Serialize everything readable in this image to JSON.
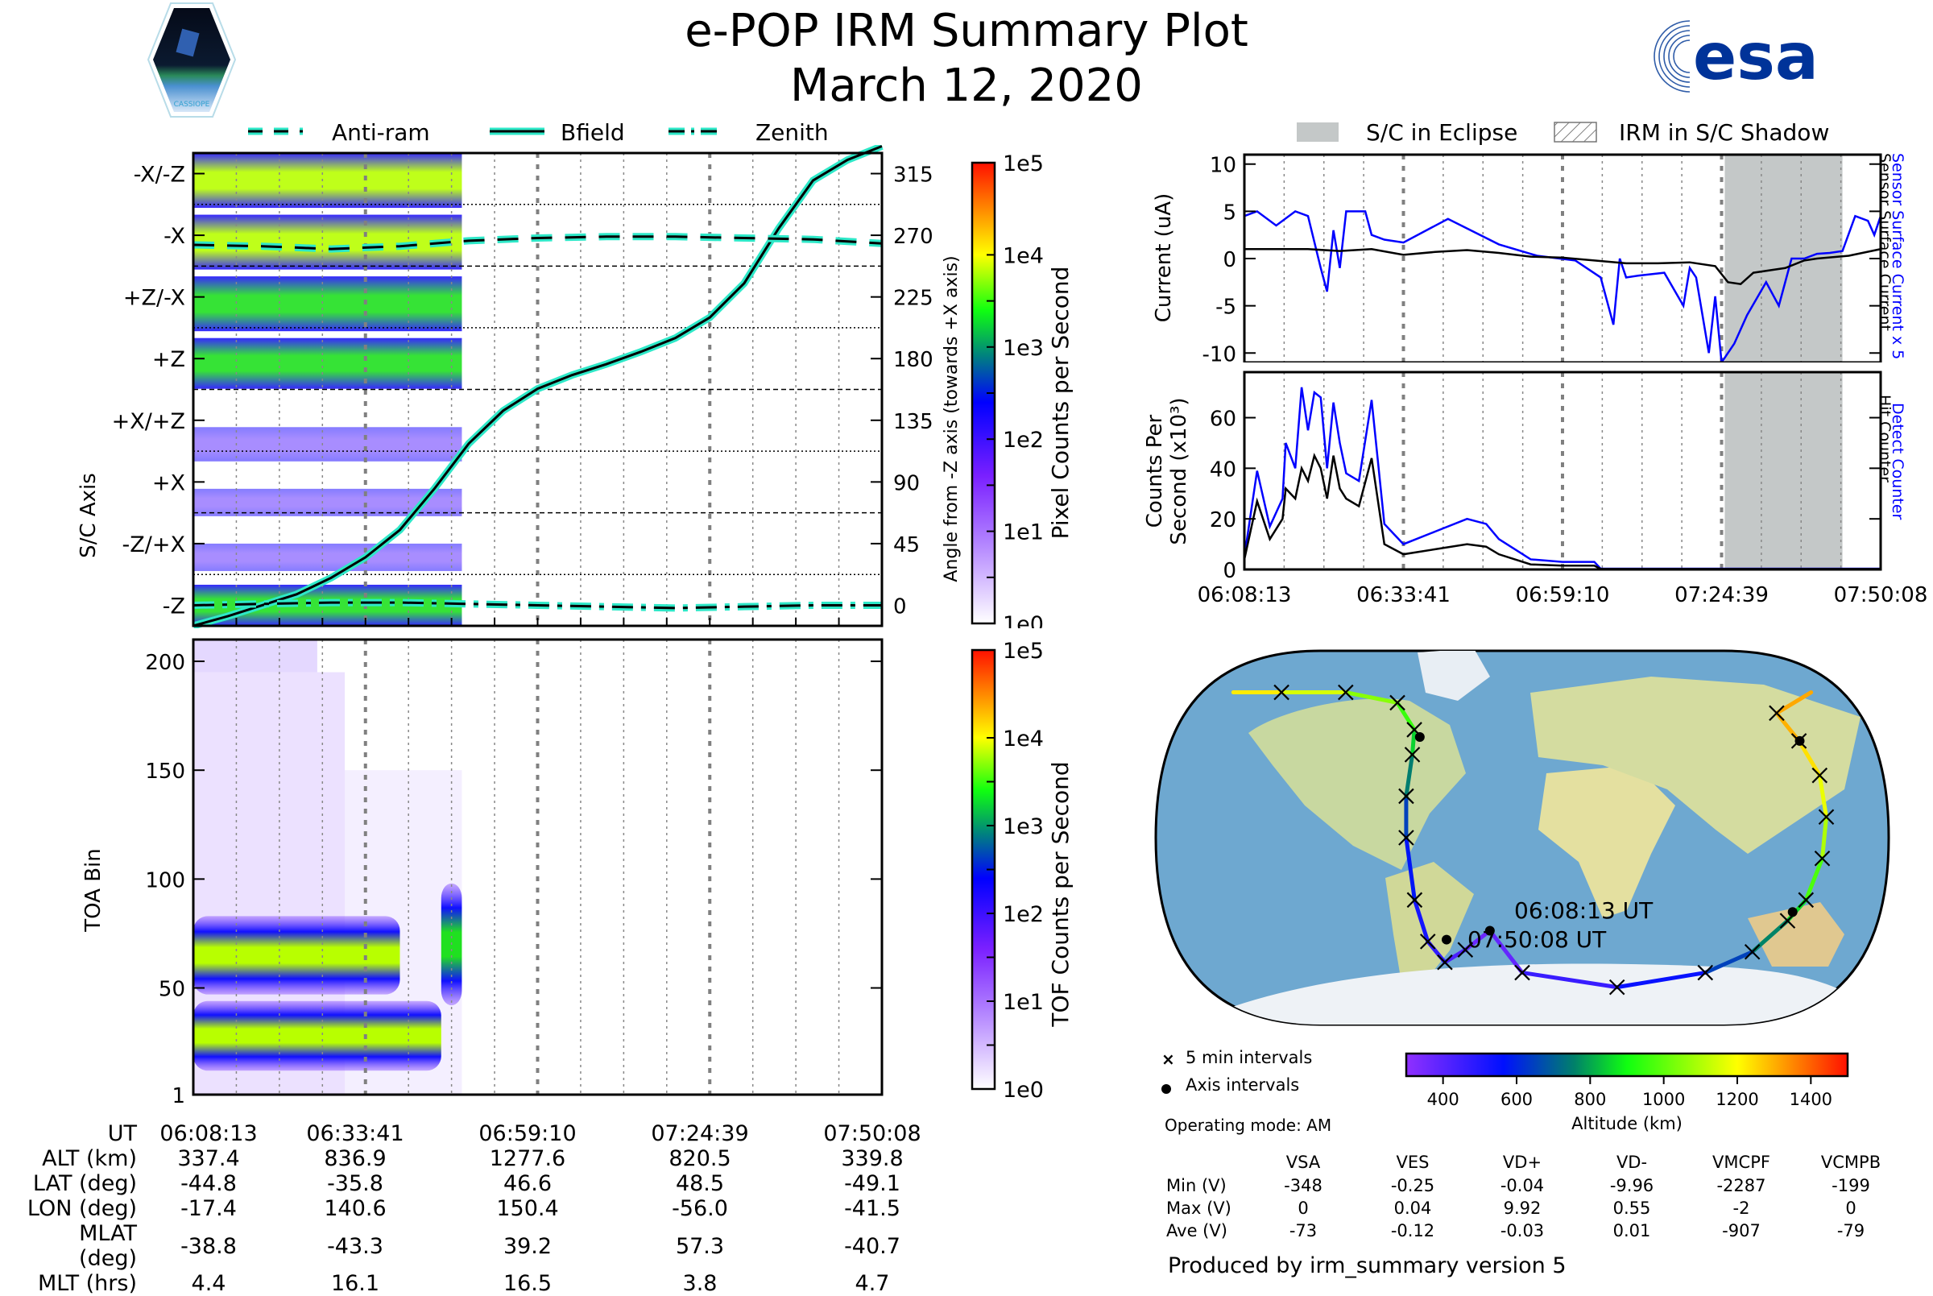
{
  "header": {
    "title": "e-POP IRM Summary Plot",
    "date": "March 12, 2020",
    "left_logo": "CASSIOPE",
    "right_logo": "esa"
  },
  "colors": {
    "trace_cyan": "#2ee8c8",
    "blue_line": "#0000ff",
    "black_line": "#000000",
    "eclipse_gray": "#c4c8c8"
  },
  "chart_data": [
    {
      "id": "sc_axis_angle",
      "type": "heatmap",
      "legend": [
        "Anti-ram",
        "Bfield",
        "Zenith"
      ],
      "ylabel": "S/C Axis",
      "y_categories": [
        "-X/-Z",
        "-X",
        "+Z/-X",
        "+Z",
        "+X/+Z",
        "+X",
        "-Z/+X",
        "-Z"
      ],
      "right_ylabel": "Angle from -Z axis (towards +X axis)",
      "right_ticks": [
        315,
        270,
        225,
        180,
        135,
        90,
        45,
        0
      ],
      "ylim": [
        -15,
        330
      ],
      "colorbar": {
        "label": "Pixel Counts per Second",
        "ticks": [
          "1e5",
          "1e4",
          "1e3",
          "1e2",
          "1e1",
          "1e0"
        ],
        "scale": "log",
        "range": [
          1,
          100000
        ]
      },
      "x_ticks": [
        "06:08:13",
        "06:33:41",
        "06:59:10",
        "07:24:39",
        "07:50:08"
      ],
      "data_end_fraction": 0.39,
      "series": [
        {
          "name": "Bfield",
          "style": "solid",
          "x": [
            0,
            0.05,
            0.1,
            0.15,
            0.2,
            0.25,
            0.3,
            0.35,
            0.4,
            0.45,
            0.5,
            0.55,
            0.6,
            0.65,
            0.7,
            0.75,
            0.8,
            0.85,
            0.9,
            0.95,
            1.0
          ],
          "y": [
            -15,
            -8,
            0,
            8,
            20,
            35,
            55,
            85,
            118,
            142,
            158,
            168,
            176,
            185,
            195,
            210,
            235,
            275,
            310,
            325,
            335
          ]
        },
        {
          "name": "Anti-ram",
          "style": "dashed",
          "x": [
            0,
            0.1,
            0.2,
            0.3,
            0.4,
            0.5,
            0.6,
            0.7,
            0.8,
            0.9,
            1.0
          ],
          "y": [
            263,
            262,
            260,
            262,
            266,
            268,
            269,
            269,
            268,
            267,
            264
          ]
        },
        {
          "name": "Zenith",
          "style": "dashdot",
          "x": [
            0,
            0.1,
            0.2,
            0.3,
            0.4,
            0.5,
            0.6,
            0.7,
            0.8,
            0.9,
            1.0
          ],
          "y": [
            0,
            1,
            2,
            2,
            1,
            0,
            -1,
            -2,
            -1,
            0,
            0
          ]
        }
      ],
      "intensity_bands": [
        {
          "y0": 290,
          "y1": 330,
          "x1": 0.39,
          "level": "high"
        },
        {
          "y0": 245,
          "y1": 285,
          "x1": 0.39,
          "level": "high"
        },
        {
          "y0": 200,
          "y1": 240,
          "x1": 0.39,
          "level": "mid"
        },
        {
          "y0": 158,
          "y1": 195,
          "x1": 0.39,
          "level": "mid"
        },
        {
          "y0": 105,
          "y1": 130,
          "x1": 0.39,
          "level": "low"
        },
        {
          "y0": 65,
          "y1": 85,
          "x1": 0.39,
          "level": "low"
        },
        {
          "y0": 25,
          "y1": 45,
          "x1": 0.39,
          "level": "low"
        },
        {
          "y0": -15,
          "y1": 15,
          "x1": 0.39,
          "level": "mid"
        }
      ]
    },
    {
      "id": "toa_spectrogram",
      "type": "heatmap",
      "ylabel": "TOA Bin",
      "y_ticks": [
        200,
        150,
        100,
        50,
        1
      ],
      "ylim": [
        1,
        210
      ],
      "colorbar": {
        "label": "TOF Counts per Second",
        "ticks": [
          "1e5",
          "1e4",
          "1e3",
          "1e2",
          "1e1",
          "1e0"
        ],
        "scale": "log",
        "range": [
          1,
          100000
        ]
      },
      "x_ticks": [
        "06:08:13",
        "06:33:41",
        "06:59:10",
        "07:24:39",
        "07:50:08"
      ],
      "data_end_fraction": 0.39,
      "bands": [
        {
          "center_bin": 65,
          "half_width": 9,
          "x0": 0,
          "x1": 0.3,
          "level": "high"
        },
        {
          "center_bin": 28,
          "half_width": 8,
          "x0": 0,
          "x1": 0.36,
          "level": "high"
        },
        {
          "center_bin": 70,
          "half_width": 14,
          "x0": 0.36,
          "x1": 0.39,
          "level": "mid"
        }
      ]
    },
    {
      "id": "current",
      "type": "line",
      "ylabel": "Current (uA)",
      "y_ticks": [
        10,
        5,
        0,
        -5,
        -10
      ],
      "ylim": [
        -11,
        11
      ],
      "right_label_blue": "Sensor Surface Current x 5",
      "right_label_black": "Sensor Surface Current",
      "eclipse_fraction": [
        0.755,
        0.94
      ],
      "series": [
        {
          "name": "Sensor Surface Current x 5",
          "color": "#0000ff",
          "x": [
            0,
            0.02,
            0.05,
            0.08,
            0.1,
            0.12,
            0.13,
            0.14,
            0.15,
            0.16,
            0.17,
            0.19,
            0.2,
            0.22,
            0.25,
            0.32,
            0.4,
            0.46,
            0.52,
            0.56,
            0.58,
            0.59,
            0.6,
            0.62,
            0.66,
            0.69,
            0.7,
            0.71,
            0.73,
            0.74,
            0.75,
            0.77,
            0.79,
            0.82,
            0.84,
            0.86,
            0.88,
            0.9,
            0.92,
            0.94,
            0.96,
            0.98,
            0.99,
            1.0
          ],
          "y": [
            4.5,
            5,
            3.5,
            5,
            4.5,
            -1,
            -3.5,
            3,
            -1,
            5,
            5,
            5,
            2.5,
            2,
            1.7,
            4.2,
            1.5,
            0.3,
            -0.2,
            -2,
            -7,
            0,
            -2,
            -1.8,
            -1.5,
            -5,
            -1,
            -2,
            -10,
            -4,
            -11,
            -9,
            -6,
            -2.5,
            -5,
            0,
            0,
            0.5,
            0.6,
            0.8,
            4.5,
            4,
            2.5,
            4.5
          ]
        },
        {
          "name": "Sensor Surface Current",
          "color": "#000000",
          "x": [
            0,
            0.05,
            0.1,
            0.15,
            0.2,
            0.25,
            0.3,
            0.35,
            0.4,
            0.45,
            0.5,
            0.55,
            0.6,
            0.65,
            0.7,
            0.74,
            0.76,
            0.78,
            0.8,
            0.85,
            0.88,
            0.9,
            0.95,
            1.0
          ],
          "y": [
            1,
            1,
            1,
            0.8,
            1,
            0.4,
            0.7,
            0.9,
            0.6,
            0.2,
            0.1,
            -0.2,
            -0.5,
            -0.5,
            -0.4,
            -0.8,
            -2.5,
            -2.7,
            -1.5,
            -1,
            -0.2,
            0,
            0.3,
            1
          ]
        }
      ]
    },
    {
      "id": "counts",
      "type": "line",
      "ylabel": "Counts Per Second (x10^3)",
      "y_ticks": [
        60,
        40,
        20,
        0
      ],
      "ylim": [
        0,
        78
      ],
      "right_label_blue": "Detect Counter",
      "right_label_black": "Hit Counter",
      "x_ticks": [
        "06:08:13",
        "06:33:41",
        "06:59:10",
        "07:24:39",
        "07:50:08"
      ],
      "eclipse_fraction": [
        0.755,
        0.94
      ],
      "series": [
        {
          "name": "Detect Counter",
          "color": "#0000ff",
          "x": [
            0,
            0.02,
            0.04,
            0.06,
            0.065,
            0.08,
            0.09,
            0.1,
            0.11,
            0.12,
            0.13,
            0.14,
            0.15,
            0.16,
            0.18,
            0.2,
            0.22,
            0.25,
            0.3,
            0.35,
            0.38,
            0.4,
            0.45,
            0.5,
            0.55,
            0.56,
            1.0
          ],
          "y": [
            5,
            39,
            17,
            28,
            50,
            40,
            72,
            55,
            70,
            68,
            40,
            66,
            50,
            38,
            35,
            67,
            18,
            10,
            15,
            20,
            18,
            12,
            4,
            3,
            3,
            0.3,
            0.3
          ]
        },
        {
          "name": "Hit Counter",
          "color": "#000000",
          "x": [
            0,
            0.02,
            0.04,
            0.06,
            0.065,
            0.08,
            0.09,
            0.1,
            0.11,
            0.12,
            0.13,
            0.14,
            0.15,
            0.16,
            0.18,
            0.2,
            0.22,
            0.25,
            0.3,
            0.35,
            0.38,
            0.4,
            0.45,
            0.5,
            0.55,
            0.56,
            1.0
          ],
          "y": [
            4,
            27,
            12,
            20,
            32,
            28,
            40,
            35,
            45,
            40,
            28,
            45,
            32,
            28,
            25,
            44,
            10,
            6,
            8,
            10,
            9,
            6,
            2,
            1.5,
            1.5,
            0.2,
            0.2
          ]
        }
      ]
    },
    {
      "id": "ground_track_map",
      "type": "scatter",
      "projection": "robinson",
      "lon_range": [
        -180,
        180
      ],
      "labels": [
        "06:08:13 UT",
        "07:50:08 UT"
      ],
      "track_lon": [
        -17.4,
        -32,
        -45,
        -52,
        -55,
        -57,
        -58,
        -58,
        -60,
        -75,
        -110,
        -150,
        -180
      ],
      "track_lat": [
        -44.8,
        -54,
        -60,
        -50,
        -30,
        0,
        20,
        40,
        52,
        65,
        70,
        70,
        70
      ],
      "track_alt": [
        337,
        400,
        450,
        500,
        550,
        600,
        700,
        800,
        900,
        1000,
        1100,
        1200,
        1250
      ],
      "track2_lon": [
        180,
        148,
        150,
        152,
        150,
        148,
        145,
        140,
        130,
        110,
        60,
        0,
        -17.4
      ],
      "track2_lat": [
        70,
        60,
        46.6,
        30,
        10,
        -10,
        -30,
        -40,
        -55,
        -65,
        -72,
        -65,
        -44.8
      ],
      "track2_alt": [
        1300,
        1320,
        1277,
        1200,
        1150,
        1050,
        900,
        820,
        700,
        600,
        500,
        420,
        340
      ],
      "colorbar": {
        "label": "Altitude (km)",
        "ticks": [
          400,
          600,
          800,
          1000,
          1200,
          1400
        ],
        "range": [
          300,
          1500
        ]
      },
      "legend": [
        "5 min intervals",
        "Axis intervals"
      ]
    }
  ],
  "legends": {
    "top_left": [
      {
        "label": "Anti-ram",
        "style": "dashed"
      },
      {
        "label": "Bfield",
        "style": "solid"
      },
      {
        "label": "Zenith",
        "style": "dashdot"
      }
    ],
    "top_right": [
      {
        "label": "S/C in Eclipse"
      },
      {
        "label": "IRM in S/C Shadow"
      }
    ],
    "map": {
      "five_min": "5 min intervals",
      "axis": "Axis intervals"
    }
  },
  "orbit_table": {
    "rows": [
      {
        "label": "UT",
        "values": [
          "06:08:13",
          "06:33:41",
          "06:59:10",
          "07:24:39",
          "07:50:08"
        ]
      },
      {
        "label": "ALT (km)",
        "values": [
          "337.4",
          "836.9",
          "1277.6",
          "820.5",
          "339.8"
        ]
      },
      {
        "label": "LAT (deg)",
        "values": [
          "-44.8",
          "-35.8",
          "46.6",
          "48.5",
          "-49.1"
        ]
      },
      {
        "label": "LON (deg)",
        "values": [
          "-17.4",
          "140.6",
          "150.4",
          "-56.0",
          "-41.5"
        ]
      },
      {
        "label": "MLAT (deg)",
        "values": [
          "-38.8",
          "-43.3",
          "39.2",
          "57.3",
          "-40.7"
        ]
      },
      {
        "label": "MLT (hrs)",
        "values": [
          "4.4",
          "16.1",
          "16.5",
          "3.8",
          "4.7"
        ]
      }
    ]
  },
  "operating_mode": "Operating mode: AM",
  "voltage_table": {
    "headers": [
      "",
      "VSA",
      "VES",
      "VD+",
      "VD-",
      "VMCPF",
      "VCMPB"
    ],
    "rows": [
      {
        "label": "Min (V)",
        "values": [
          "-348",
          "-0.25",
          "-0.04",
          "-9.96",
          "-2287",
          "-199"
        ]
      },
      {
        "label": "Max (V)",
        "values": [
          "0",
          "0.04",
          "9.92",
          "0.55",
          "-2",
          "0"
        ]
      },
      {
        "label": "Ave (V)",
        "values": [
          "-73",
          "-0.12",
          "-0.03",
          "0.01",
          "-907",
          "-79"
        ]
      }
    ]
  },
  "footer": "Produced by irm_summary version 5"
}
